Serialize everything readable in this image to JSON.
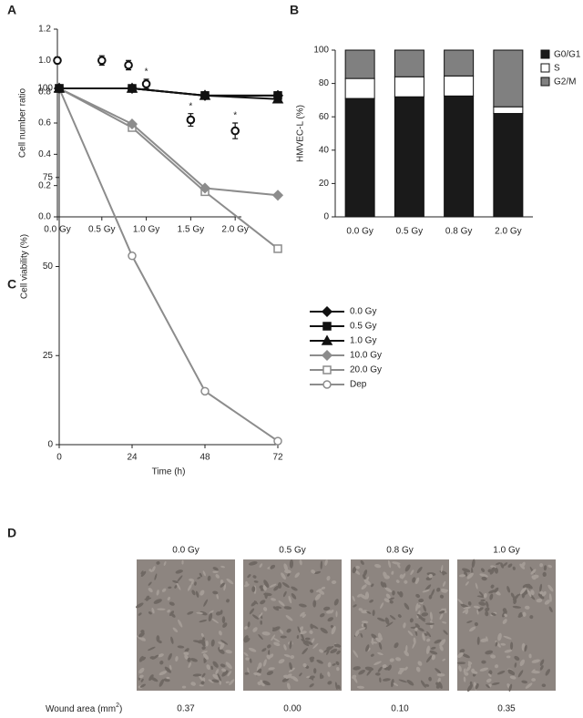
{
  "panel_labels": [
    "A",
    "B",
    "C",
    "D"
  ],
  "chart_data": [
    {
      "type": "scatter",
      "ylabel": "Cell number ratio",
      "x": [
        0,
        0.5,
        0.8,
        1.0,
        1.5,
        2.0
      ],
      "values": [
        1.0,
        1.0,
        0.97,
        0.85,
        0.62,
        0.55
      ],
      "errors": [
        0.02,
        0.03,
        0.03,
        0.03,
        0.04,
        0.05
      ],
      "annotations": [
        null,
        null,
        null,
        "*",
        "*",
        "*"
      ],
      "color": "#111111",
      "xlim": [
        0,
        2.07
      ],
      "xticks": [
        {
          "value": 0,
          "label": "0.0 Gy"
        },
        {
          "value": 0.5,
          "label": "0.5 Gy"
        },
        {
          "value": 1.0,
          "label": "1.0 Gy"
        },
        {
          "value": 1.5,
          "label": "1.5 Gy"
        },
        {
          "value": 2.0,
          "label": "2.0 Gy"
        }
      ],
      "ylim": [
        0,
        1.2
      ],
      "yticks": [
        {
          "value": 0,
          "label": "0.0"
        },
        0.2,
        0.4,
        0.6,
        0.8,
        {
          "value": 1.0,
          "label": "1.0"
        },
        1.2
      ]
    },
    {
      "type": "bar",
      "stacked": true,
      "ylabel": "HMVEC-L (%)",
      "categories": [
        "0.0 Gy",
        "0.5 Gy",
        "0.8 Gy",
        "2.0 Gy"
      ],
      "series": [
        {
          "name": "G0/G1",
          "color": "#1a1a1a",
          "values": [
            71,
            72,
            72.5,
            62
          ]
        },
        {
          "name": "S",
          "color": "#ffffff",
          "values": [
            12,
            12,
            12,
            4
          ]
        },
        {
          "name": "G2/M",
          "color": "#808080",
          "values": [
            17,
            16,
            15.5,
            34
          ]
        }
      ],
      "ylim": [
        0,
        100
      ],
      "yticks": [
        0,
        20,
        40,
        60,
        80,
        100
      ],
      "legend": "right"
    },
    {
      "type": "line",
      "xlabel": "Time (h)",
      "ylabel": "Cell viability (%)",
      "x": [
        0,
        24,
        48,
        72
      ],
      "xlim": [
        0,
        72
      ],
      "xticks": [
        0,
        24,
        48,
        72
      ],
      "ylim": [
        0,
        100
      ],
      "yticks": [
        0,
        25,
        50,
        75,
        100
      ],
      "legend": "right",
      "series": [
        {
          "name": "0.0 Gy",
          "color": "#111111",
          "marker": "diamond",
          "filled": true,
          "values": [
            100,
            100,
            98,
            98
          ]
        },
        {
          "name": "0.5 Gy",
          "color": "#111111",
          "marker": "square",
          "filled": true,
          "values": [
            100,
            100,
            98,
            98
          ]
        },
        {
          "name": "1.0 Gy",
          "color": "#111111",
          "marker": "triangle",
          "filled": true,
          "values": [
            100,
            100,
            98,
            97
          ]
        },
        {
          "name": "10.0 Gy",
          "color": "#8c8c8c",
          "marker": "diamond",
          "filled": true,
          "values": [
            100,
            90,
            72,
            70
          ]
        },
        {
          "name": "20.0 Gy",
          "color": "#8c8c8c",
          "marker": "square",
          "filled": false,
          "values": [
            100,
            89,
            71,
            55
          ]
        },
        {
          "name": "Dep",
          "color": "#8c8c8c",
          "marker": "circle",
          "filled": false,
          "values": [
            100,
            53,
            15,
            1
          ]
        }
      ]
    }
  ],
  "wound_assay": {
    "conditions": [
      "0.0 Gy",
      "0.5 Gy",
      "0.8 Gy",
      "1.0 Gy"
    ],
    "label": "Wound area (mm",
    "label_superscript": "2",
    "label_end": ")",
    "values": [
      "0.37",
      "0.00",
      "0.10",
      "0.35"
    ]
  }
}
